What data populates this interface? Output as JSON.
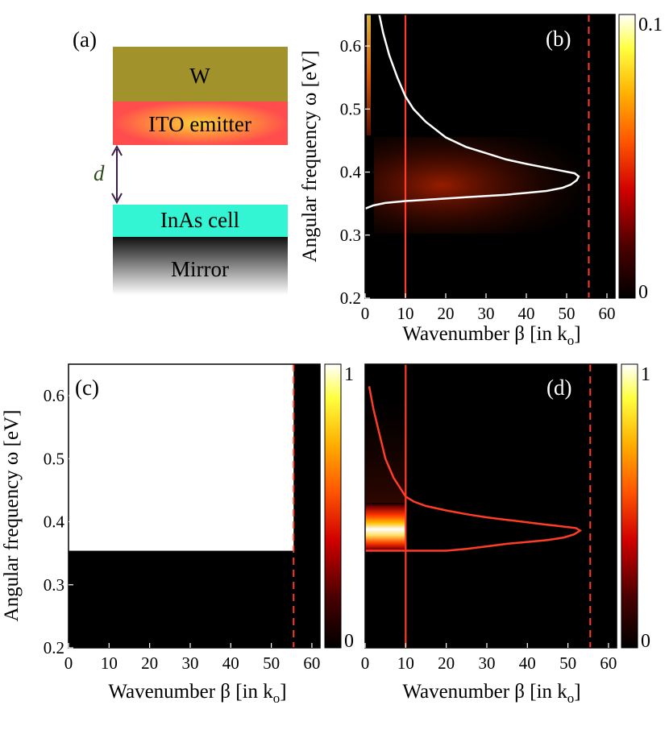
{
  "schematic": {
    "panel_label": "(a)",
    "layers": [
      {
        "label": "W",
        "color": "#a2922b"
      },
      {
        "label": "ITO emitter",
        "color": "#ff4d4d"
      },
      {
        "label": "InAs cell",
        "color": "#33f5d3"
      },
      {
        "label": "Mirror",
        "color": "#555555"
      }
    ],
    "gap_label": "d",
    "arrow_color": "#3a1f4a"
  },
  "chart_data": [
    {
      "id": "b",
      "type": "heatmap",
      "panel_label": "(b)",
      "xlabel": "Wavenumber β [in k",
      "xlabel_sub": "o",
      "xlabel_end": "]",
      "ylabel": "Angular frequency ω [eV]",
      "xlim": [
        0,
        62
      ],
      "ylim": [
        0.2,
        0.65
      ],
      "xticks": [
        0,
        10,
        20,
        30,
        40,
        50,
        60
      ],
      "yticks": [
        0.2,
        0.3,
        0.4,
        0.5,
        0.6
      ],
      "colorbar": {
        "min_label": "0",
        "max_label": "0.1"
      },
      "solid_line_x": 10,
      "dashed_line_x": 55.5,
      "curve_color": "#ffffff",
      "curve": [
        [
          0,
          0.342
        ],
        [
          2,
          0.347
        ],
        [
          5,
          0.351
        ],
        [
          10,
          0.354
        ],
        [
          15,
          0.356
        ],
        [
          20,
          0.358
        ],
        [
          25,
          0.36
        ],
        [
          30,
          0.362
        ],
        [
          35,
          0.364
        ],
        [
          40,
          0.367
        ],
        [
          45,
          0.37
        ],
        [
          49,
          0.375
        ],
        [
          51,
          0.38
        ],
        [
          52.5,
          0.387
        ],
        [
          53,
          0.393
        ],
        [
          52,
          0.398
        ],
        [
          48,
          0.403
        ],
        [
          44,
          0.408
        ],
        [
          40,
          0.413
        ],
        [
          35,
          0.42
        ],
        [
          30,
          0.43
        ],
        [
          25,
          0.44
        ],
        [
          20,
          0.455
        ],
        [
          15,
          0.48
        ],
        [
          12,
          0.5
        ],
        [
          10,
          0.52
        ],
        [
          8,
          0.55
        ],
        [
          6,
          0.585
        ],
        [
          4.5,
          0.62
        ],
        [
          3.5,
          0.65
        ]
      ]
    },
    {
      "id": "c",
      "type": "heatmap",
      "panel_label": "(c)",
      "xlabel": "Wavenumber β [in k",
      "xlabel_sub": "o",
      "xlabel_end": "]",
      "ylabel": "Angular frequency ω [eV]",
      "xlim": [
        0,
        62
      ],
      "ylim": [
        0.2,
        0.65
      ],
      "xticks": [
        0,
        10,
        20,
        30,
        40,
        50,
        60
      ],
      "yticks": [
        0.2,
        0.3,
        0.4,
        0.5,
        0.6
      ],
      "colorbar": {
        "min_label": "0",
        "max_label": "1"
      },
      "white_region": {
        "x_max": 55.5,
        "y_min": 0.354
      },
      "dashed_line_x": 55.5
    },
    {
      "id": "d",
      "type": "heatmap",
      "panel_label": "(d)",
      "xlabel": "Wavenumber β [in k",
      "xlabel_sub": "o",
      "xlabel_end": "]",
      "xlim": [
        0,
        62
      ],
      "ylim": [
        0.2,
        0.65
      ],
      "xticks": [
        0,
        10,
        20,
        30,
        40,
        50,
        60
      ],
      "colorbar": {
        "min_label": "0",
        "max_label": "1"
      },
      "solid_line_x": 10,
      "dashed_line_x": 55.5,
      "curve_color": "#ff3b2a",
      "curve": [
        [
          0,
          0.354
        ],
        [
          5,
          0.354
        ],
        [
          10,
          0.354
        ],
        [
          15,
          0.354
        ],
        [
          20,
          0.354
        ],
        [
          25,
          0.357
        ],
        [
          30,
          0.361
        ],
        [
          35,
          0.365
        ],
        [
          40,
          0.368
        ],
        [
          45,
          0.371
        ],
        [
          49,
          0.375
        ],
        [
          51.5,
          0.38
        ],
        [
          53,
          0.386
        ],
        [
          52,
          0.39
        ],
        [
          48,
          0.393
        ],
        [
          44,
          0.396
        ],
        [
          40,
          0.399
        ],
        [
          35,
          0.403
        ],
        [
          30,
          0.407
        ],
        [
          25,
          0.412
        ],
        [
          20,
          0.418
        ],
        [
          15,
          0.425
        ],
        [
          12,
          0.432
        ],
        [
          10,
          0.44
        ],
        [
          7,
          0.47
        ],
        [
          5,
          0.5
        ],
        [
          3.5,
          0.54
        ],
        [
          2,
          0.58
        ],
        [
          1,
          0.615
        ]
      ]
    }
  ]
}
